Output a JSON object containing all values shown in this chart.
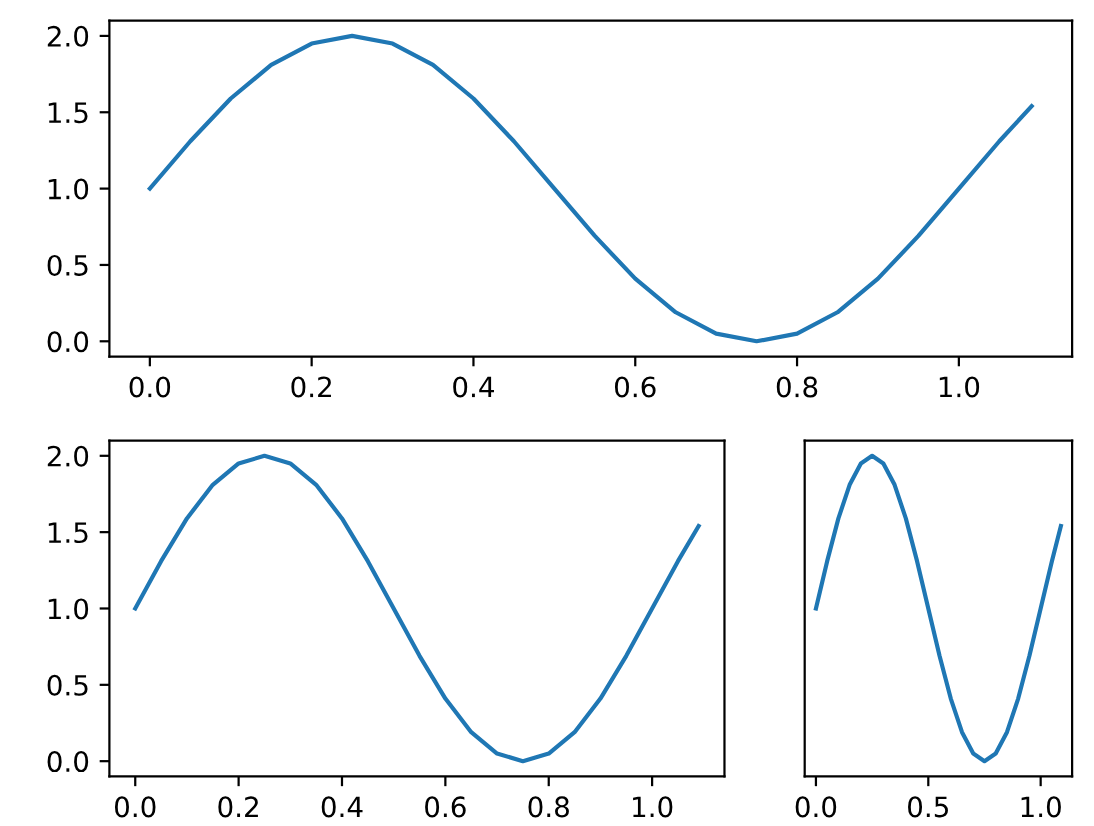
{
  "chart_data": [
    {
      "type": "line",
      "x": [
        0,
        0.05,
        0.1,
        0.15,
        0.2,
        0.25,
        0.3,
        0.35,
        0.4,
        0.45,
        0.5,
        0.55,
        0.6,
        0.65,
        0.7,
        0.75,
        0.8,
        0.85,
        0.9,
        0.95,
        1.0,
        1.05,
        1.09
      ],
      "series": [
        {
          "color": "#1f77b4",
          "values": [
            1.0,
            1.31,
            1.59,
            1.81,
            1.95,
            2.0,
            1.95,
            1.81,
            1.59,
            1.31,
            1.0,
            0.69,
            0.41,
            0.19,
            0.05,
            0.0,
            0.05,
            0.19,
            0.41,
            0.69,
            1.0,
            1.31,
            1.54
          ]
        }
      ],
      "xlim": [
        -0.05,
        1.14
      ],
      "ylim": [
        -0.1,
        2.1
      ],
      "xticks": [
        {
          "value": 0,
          "label": "0.0"
        },
        {
          "value": 0.2,
          "label": "0.2"
        },
        {
          "value": 0.4,
          "label": "0.4"
        },
        {
          "value": 0.6,
          "label": "0.6"
        },
        {
          "value": 0.8,
          "label": "0.8"
        },
        {
          "value": 1.0,
          "label": "1.0"
        }
      ],
      "yticks": [
        {
          "value": 0,
          "label": "0.0"
        },
        {
          "value": 0.5,
          "label": "0.5"
        },
        {
          "value": 1.0,
          "label": "1.0"
        },
        {
          "value": 1.5,
          "label": "1.5"
        },
        {
          "value": 2.0,
          "label": "2.0"
        }
      ]
    },
    {
      "type": "line",
      "x": [
        0,
        0.05,
        0.1,
        0.15,
        0.2,
        0.25,
        0.3,
        0.35,
        0.4,
        0.45,
        0.5,
        0.55,
        0.6,
        0.65,
        0.7,
        0.75,
        0.8,
        0.85,
        0.9,
        0.95,
        1.0,
        1.05,
        1.09
      ],
      "series": [
        {
          "color": "#1f77b4",
          "values": [
            1.0,
            1.31,
            1.59,
            1.81,
            1.95,
            2.0,
            1.95,
            1.81,
            1.59,
            1.31,
            1.0,
            0.69,
            0.41,
            0.19,
            0.05,
            0.0,
            0.05,
            0.19,
            0.41,
            0.69,
            1.0,
            1.31,
            1.54
          ]
        }
      ],
      "xlim": [
        -0.05,
        1.14
      ],
      "ylim": [
        -0.1,
        2.1
      ],
      "xticks": [
        {
          "value": 0,
          "label": "0.0"
        },
        {
          "value": 0.2,
          "label": "0.2"
        },
        {
          "value": 0.4,
          "label": "0.4"
        },
        {
          "value": 0.6,
          "label": "0.6"
        },
        {
          "value": 0.8,
          "label": "0.8"
        },
        {
          "value": 1.0,
          "label": "1.0"
        }
      ],
      "yticks": [
        {
          "value": 0,
          "label": "0.0"
        },
        {
          "value": 0.5,
          "label": "0.5"
        },
        {
          "value": 1.0,
          "label": "1.0"
        },
        {
          "value": 1.5,
          "label": "1.5"
        },
        {
          "value": 2.0,
          "label": "2.0"
        }
      ]
    },
    {
      "type": "line",
      "x": [
        0,
        0.05,
        0.1,
        0.15,
        0.2,
        0.25,
        0.3,
        0.35,
        0.4,
        0.45,
        0.5,
        0.55,
        0.6,
        0.65,
        0.7,
        0.75,
        0.8,
        0.85,
        0.9,
        0.95,
        1.0,
        1.05,
        1.09
      ],
      "series": [
        {
          "color": "#1f77b4",
          "values": [
            1.0,
            1.31,
            1.59,
            1.81,
            1.95,
            2.0,
            1.95,
            1.81,
            1.59,
            1.31,
            1.0,
            0.69,
            0.41,
            0.19,
            0.05,
            0.0,
            0.05,
            0.19,
            0.41,
            0.69,
            1.0,
            1.31,
            1.54
          ]
        }
      ],
      "xlim": [
        -0.05,
        1.14
      ],
      "ylim": [
        -0.1,
        2.1
      ],
      "xticks": [
        {
          "value": 0,
          "label": "0.0"
        },
        {
          "value": 0.5,
          "label": "0.5"
        },
        {
          "value": 1.0,
          "label": "1.0"
        }
      ],
      "tick_labels": "x"
    }
  ]
}
